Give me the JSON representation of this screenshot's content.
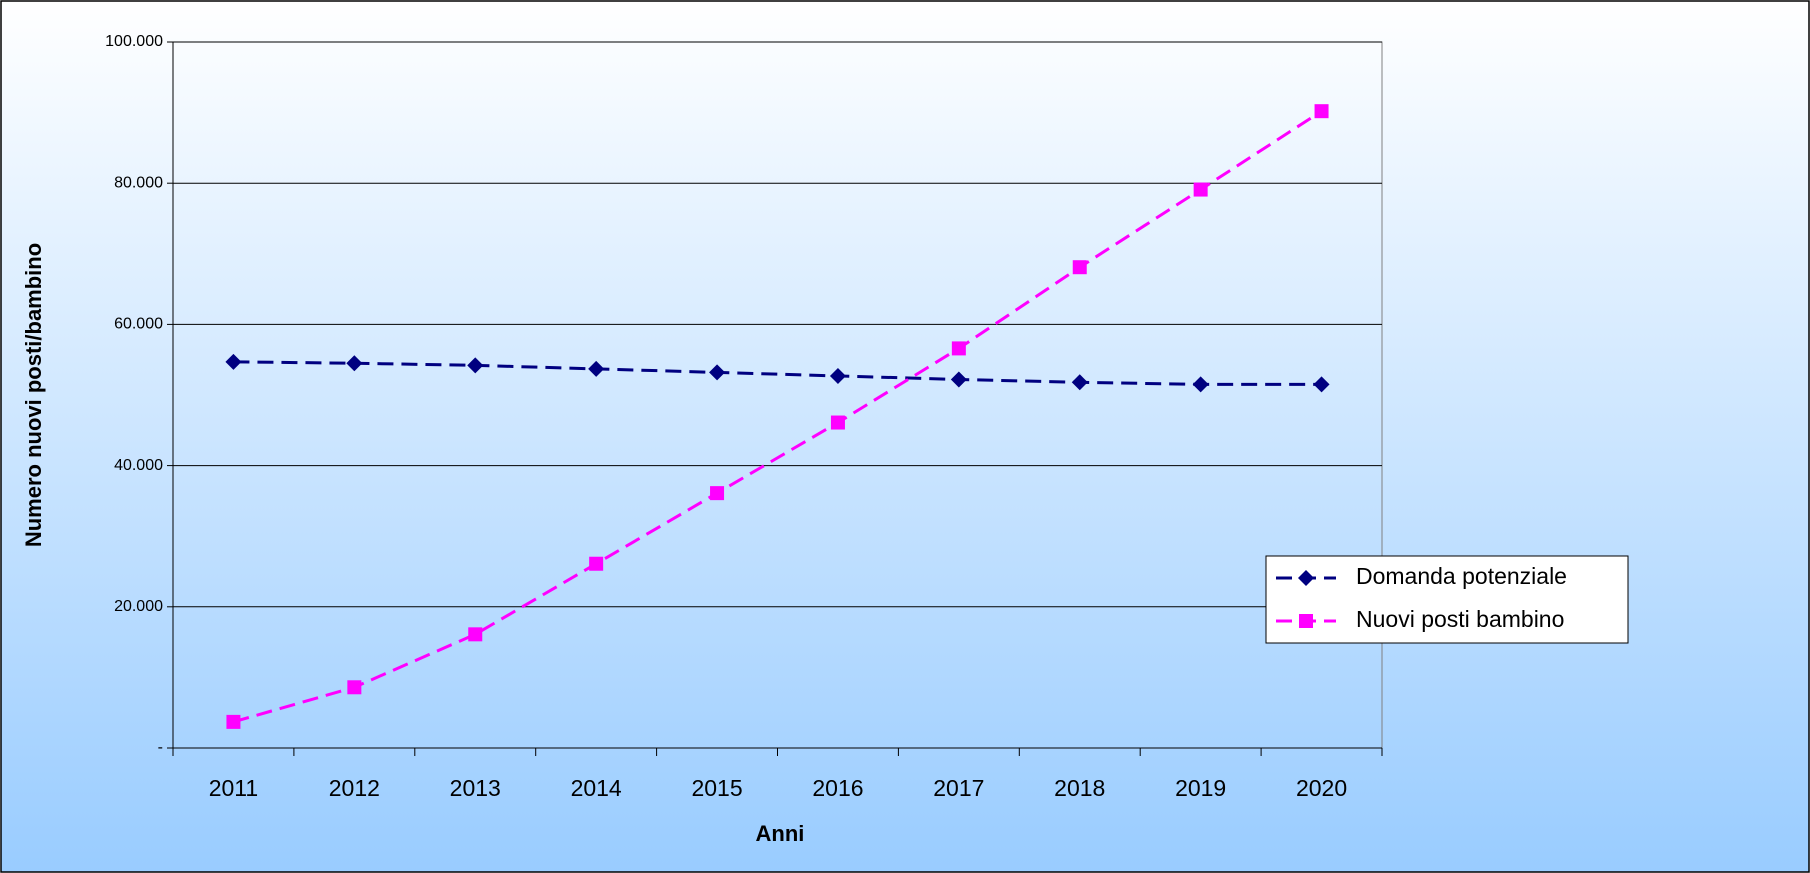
{
  "chart_data": {
    "type": "line",
    "x_label": "Anni",
    "y_label": "Numero nuovi posti/bambino",
    "categories": [
      "2011",
      "2012",
      "2013",
      "2014",
      "2015",
      "2016",
      "2017",
      "2018",
      "2019",
      "2020"
    ],
    "series": [
      {
        "name": "Domanda potenziale",
        "color": "#000080",
        "marker": "diamond",
        "values": [
          54700,
          54500,
          54200,
          53700,
          53200,
          52700,
          52200,
          51800,
          51500,
          51500
        ]
      },
      {
        "name": "Nuovi posti bambino",
        "color": "#ff00ff",
        "marker": "square",
        "values": [
          3700,
          8600,
          16100,
          26100,
          36100,
          46100,
          56600,
          68100,
          79100,
          90200
        ]
      }
    ],
    "ylim": [
      0,
      100000
    ],
    "yticks": [
      {
        "value": 0,
        "label": "-"
      },
      {
        "value": 20000,
        "label": "20.000"
      },
      {
        "value": 40000,
        "label": "40.000"
      },
      {
        "value": 60000,
        "label": "60.000"
      },
      {
        "value": 80000,
        "label": "80.000"
      },
      {
        "value": 100000,
        "label": "100.000"
      }
    ],
    "grid": true,
    "legend": "right"
  }
}
